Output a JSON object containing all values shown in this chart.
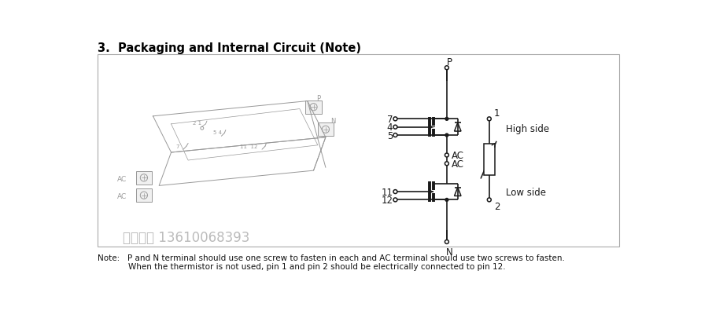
{
  "title": "3.  Packaging and Internal Circuit (Note)",
  "title_fontsize": 10.5,
  "bg_color": "#ffffff",
  "note_line1": "Note:   P and N terminal should use one screw to fasten in each and AC terminal should use two screws to fasten.",
  "note_line2": "            When the thermistor is not used, pin 1 and pin 2 should be electrically connected to pin 12.",
  "watermark": "东芸总代 13610068393",
  "pin_label_P": "P",
  "pin_label_N": "N",
  "label_high_side": "High side",
  "label_low_side": "Low side",
  "label_1": "1",
  "label_2": "2",
  "ckt_color": "#1a1a1a",
  "pkg_color": "#999999",
  "box_edge_color": "#aaaaaa"
}
